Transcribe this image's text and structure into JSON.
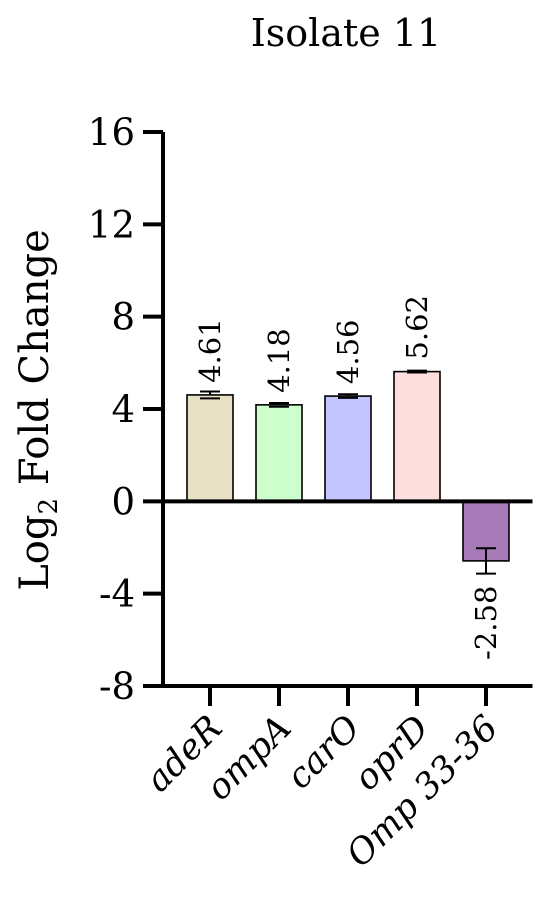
{
  "chart_data": {
    "type": "bar",
    "title": "Isolate 11",
    "ylabel": "Log",
    "ylabel_subscript": "2",
    "ylabel_rest": " Fold Change",
    "ylim": [
      -8,
      16
    ],
    "yticks": [
      -8,
      -4,
      0,
      4,
      8,
      12,
      16
    ],
    "ytick_labels": [
      "-8",
      "-4",
      "0",
      "4",
      "8",
      "12",
      "16"
    ],
    "categories": [
      "adeR",
      "ompA",
      "carO",
      "oprD",
      "Omp 33-36"
    ],
    "values": [
      4.61,
      4.18,
      4.56,
      5.62,
      -2.58
    ],
    "value_labels": [
      "4.61",
      "4.18",
      "4.56",
      "5.62",
      "-2.58"
    ],
    "errors": [
      0.15,
      0.08,
      0.08,
      0.04,
      0.55
    ],
    "colors": [
      "#e8e0c4",
      "#ccffcc",
      "#c4c4ff",
      "#ffdede",
      "#a87ab8"
    ],
    "grid": false,
    "legend": "none"
  }
}
